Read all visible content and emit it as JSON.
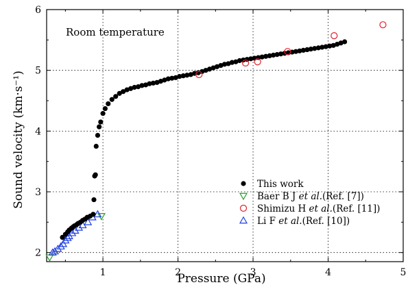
{
  "chart_data": {
    "type": "scatter",
    "xlabel": "Pressure (GPa)",
    "ylabel": "Sound velocity (km·s⁻¹)",
    "annotation": "Room temperature",
    "xlim": [
      0.25,
      5.0
    ],
    "ylim": [
      1.85,
      6.0
    ],
    "x_ticks": [
      1,
      2,
      3,
      4,
      5
    ],
    "y_ticks": [
      2,
      3,
      4,
      5,
      6
    ],
    "grid": true,
    "legend_position": "bottom-right",
    "series": [
      {
        "name": "This work",
        "label_parts": [
          "This work"
        ],
        "marker": "filled-circle",
        "color": "#000000",
        "x": [
          0.46,
          0.5,
          0.53,
          0.55,
          0.58,
          0.6,
          0.62,
          0.65,
          0.67,
          0.7,
          0.73,
          0.76,
          0.79,
          0.83,
          0.87,
          0.88,
          0.89,
          0.9,
          0.91,
          0.93,
          0.95,
          0.97,
          1.0,
          1.03,
          1.07,
          1.12,
          1.17,
          1.22,
          1.27,
          1.32,
          1.37,
          1.42,
          1.47,
          1.52,
          1.57,
          1.62,
          1.67,
          1.72,
          1.77,
          1.82,
          1.87,
          1.92,
          1.97,
          2.02,
          2.07,
          2.12,
          2.17,
          2.22,
          2.27,
          2.32,
          2.37,
          2.42,
          2.47,
          2.52,
          2.57,
          2.62,
          2.67,
          2.72,
          2.77,
          2.82,
          2.87,
          2.92,
          2.97,
          3.02,
          3.07,
          3.12,
          3.17,
          3.22,
          3.27,
          3.32,
          3.37,
          3.42,
          3.47,
          3.52,
          3.57,
          3.62,
          3.67,
          3.72,
          3.77,
          3.82,
          3.87,
          3.92,
          3.97,
          4.02,
          4.07,
          4.12,
          4.17,
          4.22
        ],
        "y": [
          2.25,
          2.3,
          2.34,
          2.37,
          2.4,
          2.42,
          2.44,
          2.46,
          2.48,
          2.5,
          2.53,
          2.55,
          2.58,
          2.6,
          2.63,
          2.87,
          3.26,
          3.28,
          3.75,
          3.93,
          4.07,
          4.15,
          4.29,
          4.37,
          4.45,
          4.52,
          4.57,
          4.62,
          4.65,
          4.68,
          4.7,
          4.72,
          4.73,
          4.75,
          4.76,
          4.78,
          4.79,
          4.8,
          4.82,
          4.84,
          4.86,
          4.87,
          4.88,
          4.9,
          4.91,
          4.92,
          4.93,
          4.95,
          4.96,
          4.98,
          5.0,
          5.02,
          5.04,
          5.06,
          5.08,
          5.1,
          5.11,
          5.13,
          5.14,
          5.16,
          5.17,
          5.18,
          5.19,
          5.2,
          5.21,
          5.22,
          5.23,
          5.24,
          5.25,
          5.26,
          5.27,
          5.28,
          5.29,
          5.3,
          5.31,
          5.32,
          5.33,
          5.34,
          5.35,
          5.36,
          5.37,
          5.38,
          5.39,
          5.4,
          5.41,
          5.43,
          5.45,
          5.47
        ]
      },
      {
        "name": "Baer B J et al.(Ref. [7])",
        "label_parts": [
          "Baer B J ",
          "et al.",
          "(Ref. [7])"
        ],
        "marker": "triangle-down",
        "color": "#2a9a2a",
        "x": [
          0.29,
          0.98
        ],
        "y": [
          1.92,
          2.6
        ]
      },
      {
        "name": "Shimizu H et al.(Ref. [11])",
        "label_parts": [
          "Shimizu H ",
          "et al.",
          "(Ref. [11])"
        ],
        "marker": "circle-open",
        "color": "#e0202a",
        "x": [
          2.28,
          2.9,
          3.06,
          3.46,
          4.08,
          4.73
        ],
        "y": [
          4.93,
          5.12,
          5.14,
          5.31,
          5.57,
          5.75
        ]
      },
      {
        "name": "Li F et al.(Ref. [10])",
        "label_parts": [
          "Li F ",
          "et al.",
          "(Ref. [10])"
        ],
        "marker": "triangle-up",
        "color": "#1f3fe0",
        "x": [
          0.33,
          0.36,
          0.4,
          0.44,
          0.47,
          0.5,
          0.53,
          0.55,
          0.59,
          0.63,
          0.68,
          0.73,
          0.8,
          0.86,
          0.93
        ],
        "y": [
          2.0,
          2.02,
          2.06,
          2.1,
          2.14,
          2.2,
          2.24,
          2.27,
          2.32,
          2.36,
          2.41,
          2.45,
          2.5,
          2.58,
          2.63
        ]
      }
    ]
  }
}
